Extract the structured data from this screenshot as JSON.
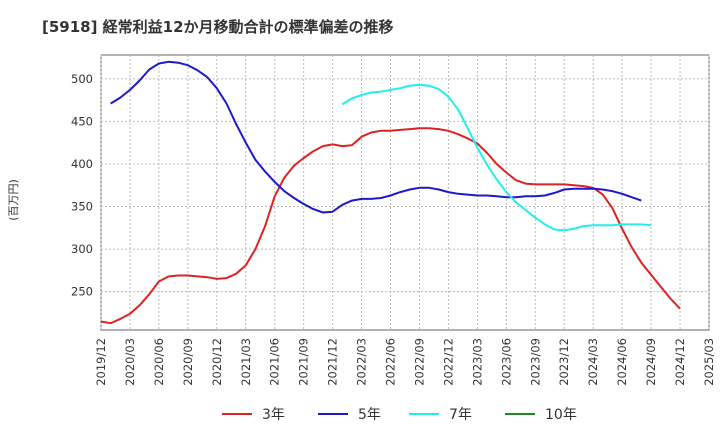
{
  "chart_data": {
    "type": "line",
    "title": "[5918]  経常利益12か月移動合計の標準偏差の推移",
    "ylabel": "(百万円)",
    "xlabel": "",
    "ylim": [
      205,
      528
    ],
    "yticks": [
      250,
      300,
      350,
      400,
      450,
      500
    ],
    "grid": true,
    "x_start": "2019-12",
    "x_end": "2025-03",
    "xtick_labels": [
      "2019/12",
      "2020/03",
      "2020/06",
      "2020/09",
      "2020/12",
      "2021/03",
      "2021/06",
      "2021/09",
      "2021/12",
      "2022/03",
      "2022/06",
      "2022/09",
      "2022/12",
      "2023/03",
      "2023/06",
      "2023/09",
      "2023/12",
      "2024/03",
      "2024/06",
      "2024/09",
      "2024/12",
      "2025/03"
    ],
    "legend_position": "bottom",
    "series": [
      {
        "name": "3年",
        "color": "#dd2222",
        "start": "2019-12",
        "values": [
          215,
          213,
          218,
          224,
          234,
          247,
          262,
          268,
          269,
          269,
          268,
          267,
          265,
          266,
          271,
          281,
          300,
          327,
          362,
          384,
          398,
          407,
          415,
          421,
          423,
          421,
          422,
          432,
          437,
          439,
          439,
          440,
          441,
          442,
          442,
          441,
          439,
          435,
          430,
          424,
          413,
          400,
          390,
          381,
          377,
          376,
          376,
          376,
          376,
          375,
          374,
          372,
          364,
          348,
          324,
          302,
          284,
          270,
          256,
          242,
          230
        ]
      },
      {
        "name": "5年",
        "color": "#1a1acc",
        "start": "2020-01",
        "values": [
          471,
          478,
          487,
          498,
          511,
          518,
          520,
          519,
          516,
          510,
          502,
          489,
          471,
          447,
          425,
          405,
          391,
          379,
          368,
          360,
          353,
          347,
          343,
          344,
          352,
          357,
          359,
          359,
          360,
          363,
          367,
          370,
          372,
          372,
          370,
          367,
          365,
          364,
          363,
          363,
          362,
          361,
          361,
          362,
          362,
          363,
          366,
          370,
          371,
          371,
          371,
          370,
          368,
          365,
          361,
          357
        ]
      },
      {
        "name": "7年",
        "color": "#22eeee",
        "start": "2022-01",
        "values": [
          470,
          477,
          481,
          484,
          485,
          487,
          489,
          492,
          493,
          492,
          488,
          479,
          464,
          442,
          419,
          399,
          382,
          367,
          355,
          346,
          337,
          329,
          323,
          322,
          324,
          327,
          328,
          328,
          328,
          329,
          329,
          329,
          328
        ]
      },
      {
        "name": "10年",
        "color": "#228822",
        "start": "",
        "values": []
      }
    ]
  }
}
